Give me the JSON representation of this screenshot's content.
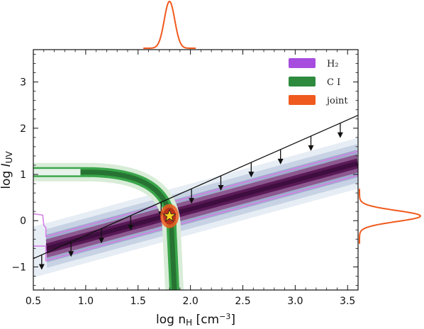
{
  "chart_data": {
    "type": "line",
    "xlabel": "log n_H [cm^-3]",
    "ylabel": "log I_UV",
    "xlim": [
      0.5,
      3.6
    ],
    "ylim": [
      -1.5,
      3.7
    ],
    "xticks": [
      "0.5",
      "1.0",
      "1.5",
      "2.0",
      "2.5",
      "3.0",
      "3.5"
    ],
    "yticks": [
      "−1",
      "0",
      "1",
      "2",
      "3"
    ],
    "legend": {
      "placement": "top-right",
      "entries": [
        {
          "label": "H₂",
          "color": "#a64de0"
        },
        {
          "label": "C I",
          "color": "#2e8b3e"
        },
        {
          "label": "joint",
          "color": "#f05a1e"
        }
      ]
    },
    "upper_limit_line": {
      "slope": 1.0,
      "intercept": -1.32,
      "x": [
        0.5,
        3.6
      ]
    },
    "upper_limit_arrows_x": [
      0.58,
      0.86,
      1.15,
      1.43,
      1.72,
      2.01,
      2.29,
      2.58,
      2.86,
      3.15,
      3.43
    ],
    "h2_band": {
      "x": [
        0.62,
        3.6
      ],
      "center_slope": 0.62,
      "center_intercept": -0.99,
      "halfwidth": 0.26
    },
    "ci_track": {
      "plateau_y": 1.05,
      "asymptote_x": 1.82,
      "x_start": 0.5
    },
    "joint_point": {
      "x": 1.8,
      "y": 0.1
    },
    "marginal_x": {
      "mean": 1.8,
      "sigma": 0.05
    },
    "marginal_y": {
      "mean": 0.1,
      "sigma": 0.12
    },
    "colors": {
      "h2": "#a64de0",
      "h2_band": "#6a1a5e",
      "ci": "#2e8b3e",
      "joint": "#f05a1e",
      "star": "#ffd21f"
    }
  }
}
